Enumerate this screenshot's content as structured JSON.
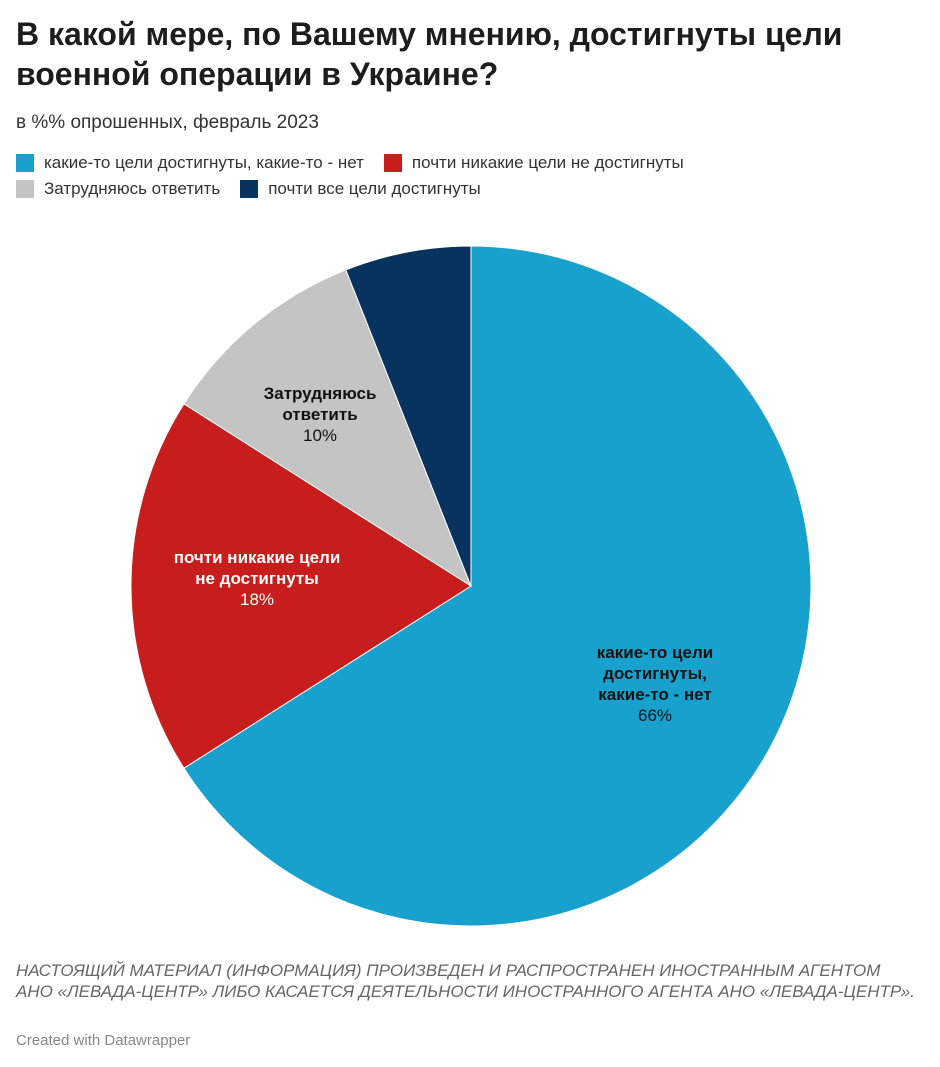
{
  "header": {
    "title": "В какой мере, по Вашему мнению, достигнуты цели военной операции в Украине?",
    "subtitle": "в %% опрошенных, февраль 2023"
  },
  "legend": {
    "items": [
      {
        "label": "какие-то цели достигнуты, какие-то - нет",
        "color": "#18a1cd"
      },
      {
        "label": "почти никакие цели не достигнуты",
        "color": "#c71e1d"
      },
      {
        "label": "Затрудняюсь ответить",
        "color": "#c4c4c4"
      },
      {
        "label": "почти все цели достигнуты",
        "color": "#09335f"
      }
    ]
  },
  "chart_data": {
    "type": "pie",
    "slices": [
      {
        "label": "какие-то цели достигнуты, какие-то - нет",
        "display_lines": [
          "какие-то цели",
          "достигнуты,",
          "какие-то - нет"
        ],
        "value": 66,
        "value_label": "66%",
        "color": "#18a1cd",
        "label_color": "#111111"
      },
      {
        "label": "почти никакие цели не достигнуты",
        "display_lines": [
          "почти никакие цели",
          "не достигнуты"
        ],
        "value": 18,
        "value_label": "18%",
        "color": "#c71e1d",
        "label_color": "#ffffff"
      },
      {
        "label": "Затрудняюсь ответить",
        "display_lines": [
          "Затрудняюсь",
          "ответить"
        ],
        "value": 10,
        "value_label": "10%",
        "color": "#c4c4c4",
        "label_color": "#111111"
      },
      {
        "label": "почти все цели достигнуты",
        "display_lines": [],
        "value": 6,
        "value_label": "",
        "color": "#09335f",
        "label_color": "#ffffff"
      }
    ]
  },
  "footer": {
    "notes": "НАСТОЯЩИЙ МАТЕРИАЛ (ИНФОРМАЦИЯ) ПРОИЗВЕДЕН И РАСПРОСТРАНЕН ИНОСТРАННЫМ АГЕНТОМ АНО «ЛЕВАДА-ЦЕНТР» ЛИБО КАСАЕТСЯ ДЕЯТЕЛЬНОСТИ ИНОСТРАННОГО АГЕНТА АНО «ЛЕВАДА-ЦЕНТР».",
    "byline": "Created with Datawrapper"
  }
}
